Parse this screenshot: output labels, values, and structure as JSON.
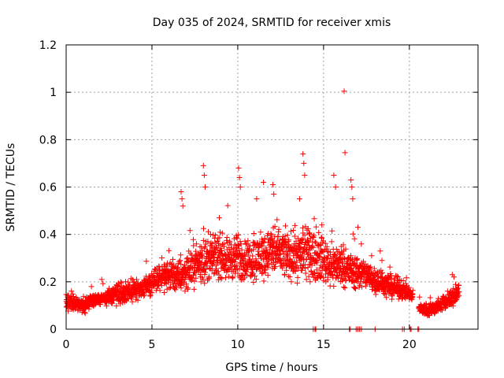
{
  "chart_data": {
    "type": "scatter",
    "title": "Day 035 of 2024, SRMTID for receiver xmis",
    "xlabel": "GPS time / hours",
    "ylabel": "SRMTID / TECUs",
    "xlim": [
      0,
      24
    ],
    "ylim": [
      0,
      1.2
    ],
    "xticks": [
      0,
      5,
      10,
      15,
      20
    ],
    "xtick_labels": [
      "0",
      "5",
      "10",
      "15",
      "20"
    ],
    "yticks": [
      0,
      0.2,
      0.4,
      0.6,
      0.8,
      1.0,
      1.2
    ],
    "ytick_labels": [
      "0",
      "0.2",
      "0.4",
      "0.6",
      "0.8",
      "1",
      "1.2"
    ],
    "grid": true,
    "marker": "+",
    "color": "#ff0000",
    "series": [
      {
        "name": "SRMTID",
        "envelope": {
          "t": [
            0.0,
            0.5,
            1.0,
            1.5,
            2.0,
            2.5,
            3.0,
            3.5,
            4.0,
            4.5,
            5.0,
            5.5,
            6.0,
            6.5,
            7.0,
            7.5,
            8.0,
            8.5,
            9.0,
            9.5,
            10.0,
            10.5,
            11.0,
            11.5,
            12.0,
            12.5,
            13.0,
            13.5,
            14.0,
            14.5,
            15.0,
            15.5,
            16.0,
            16.5,
            17.0,
            17.5,
            18.0,
            18.5,
            19.0,
            19.5,
            20.0,
            20.6,
            21.0,
            21.5,
            22.0,
            22.5,
            22.9
          ],
          "base": [
            0.11,
            0.11,
            0.1,
            0.12,
            0.13,
            0.14,
            0.15,
            0.15,
            0.16,
            0.18,
            0.2,
            0.21,
            0.23,
            0.22,
            0.24,
            0.27,
            0.29,
            0.3,
            0.31,
            0.3,
            0.3,
            0.29,
            0.3,
            0.31,
            0.33,
            0.32,
            0.31,
            0.31,
            0.32,
            0.3,
            0.29,
            0.27,
            0.27,
            0.25,
            0.24,
            0.23,
            0.21,
            0.19,
            0.18,
            0.17,
            0.15,
            0.09,
            0.08,
            0.09,
            0.11,
            0.13,
            0.16
          ],
          "spread": [
            0.03,
            0.03,
            0.03,
            0.03,
            0.03,
            0.03,
            0.04,
            0.04,
            0.04,
            0.04,
            0.05,
            0.05,
            0.06,
            0.07,
            0.07,
            0.08,
            0.09,
            0.09,
            0.09,
            0.09,
            0.1,
            0.09,
            0.09,
            0.1,
            0.11,
            0.1,
            0.1,
            0.1,
            0.1,
            0.1,
            0.09,
            0.09,
            0.09,
            0.08,
            0.07,
            0.06,
            0.06,
            0.05,
            0.05,
            0.04,
            0.03,
            0.02,
            0.03,
            0.03,
            0.03,
            0.04,
            0.04
          ],
          "samples_per_hour": 110
        },
        "spikes": [
          [
            6.7,
            0.58
          ],
          [
            6.75,
            0.55
          ],
          [
            6.8,
            0.52
          ],
          [
            8.0,
            0.69
          ],
          [
            8.05,
            0.65
          ],
          [
            8.1,
            0.6
          ],
          [
            10.05,
            0.68
          ],
          [
            10.1,
            0.64
          ],
          [
            10.15,
            0.6
          ],
          [
            11.1,
            0.55
          ],
          [
            11.5,
            0.62
          ],
          [
            12.05,
            0.61
          ],
          [
            12.1,
            0.57
          ],
          [
            13.6,
            0.55
          ],
          [
            13.8,
            0.74
          ],
          [
            13.85,
            0.7
          ],
          [
            13.9,
            0.65
          ],
          [
            14.9,
            0.44
          ],
          [
            15.6,
            0.65
          ],
          [
            15.7,
            0.6
          ],
          [
            16.2,
            1.005
          ],
          [
            16.25,
            0.745
          ],
          [
            16.6,
            0.63
          ],
          [
            16.65,
            0.6
          ],
          [
            16.7,
            0.55
          ],
          [
            17.0,
            0.43
          ],
          [
            17.2,
            0.36
          ],
          [
            17.8,
            0.31
          ],
          [
            18.3,
            0.33
          ],
          [
            18.4,
            0.29
          ],
          [
            22.5,
            0.23
          ],
          [
            22.6,
            0.22
          ]
        ],
        "zero_points": [
          14.4,
          14.5,
          14.55,
          16.5,
          16.55,
          16.9,
          17.0,
          17.1,
          17.2,
          18.0,
          19.6,
          19.7,
          20.05,
          20.1,
          20.5,
          20.55
        ]
      }
    ]
  }
}
